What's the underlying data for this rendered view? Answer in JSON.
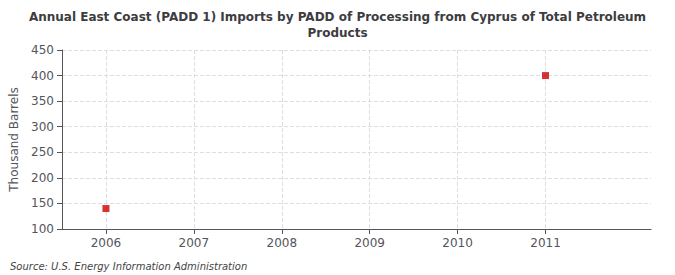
{
  "chart_data": {
    "type": "scatter",
    "title": "Annual East Coast (PADD 1) Imports by PADD of Processing from Cyprus of Total Petroleum\nProducts",
    "ylabel": "Thousand Barrels",
    "source": "Source: U.S. Energy Information Administration",
    "x": [
      2006,
      2011
    ],
    "values": [
      140,
      400
    ],
    "color": "#cc0000",
    "marker": "square",
    "xlim": [
      2005.5,
      2012.2
    ],
    "xticks": [
      2006,
      2007,
      2008,
      2009,
      2010,
      2011
    ],
    "ylim": [
      100,
      450
    ],
    "yticks": [
      100,
      150,
      200,
      250,
      300,
      350,
      400,
      450
    ],
    "grid": true
  }
}
